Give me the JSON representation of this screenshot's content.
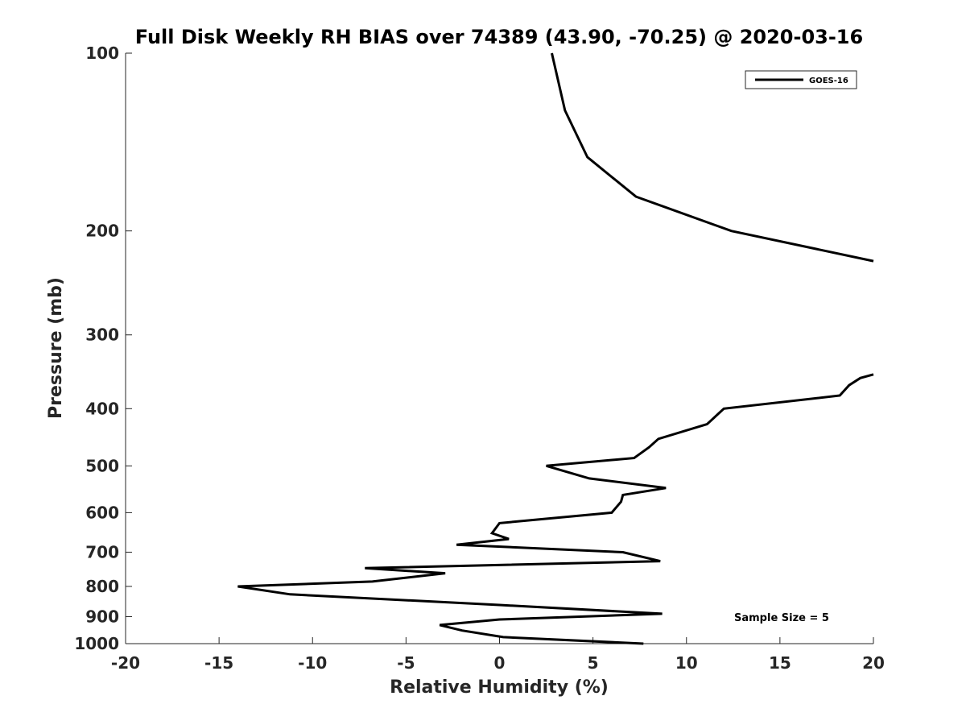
{
  "chart_data": {
    "type": "line",
    "title": "Full Disk Weekly RH BIAS over 74389 (43.90, -70.25) @ 2020-03-16",
    "xlabel": "Relative Humidity (%)",
    "ylabel": "Pressure (mb)",
    "xlim": [
      -20,
      20
    ],
    "ylim": [
      100,
      1000
    ],
    "y_scale": "log",
    "y_reversed": true,
    "grid": false,
    "x_ticks": [
      -20,
      -15,
      -10,
      -5,
      0,
      5,
      10,
      15,
      20
    ],
    "x_tick_labels": [
      "-20",
      "-15",
      "-10",
      "-5",
      "0",
      "5",
      "10",
      "15",
      "20"
    ],
    "y_ticks": [
      100,
      200,
      300,
      400,
      500,
      600,
      700,
      800,
      900,
      1000
    ],
    "y_tick_labels": [
      "100",
      "200",
      "300",
      "400",
      "500",
      "600",
      "700",
      "800",
      "900",
      "1000"
    ],
    "legend_position": "top-right",
    "annotation": "Sample Size = 5",
    "series": [
      {
        "name": "GOES-16",
        "color": "#000000",
        "segments": [
          {
            "x": [
              2.8,
              3.5,
              4.7,
              7.3,
              12.4,
              20.0
            ],
            "p": [
              100,
              125,
              150,
              175,
              200,
              225
            ]
          },
          {
            "x": [
              20.0,
              19.3,
              18.7,
              18.2,
              12.0,
              11.1,
              8.5,
              8.0,
              7.2,
              2.5,
              4.8,
              8.9,
              6.6,
              6.5,
              6.0,
              0.0,
              -0.4,
              0.5,
              -2.3,
              6.6,
              8.6,
              -7.2,
              -2.9,
              -6.8,
              -14.0,
              -11.2,
              0.0,
              8.7,
              0.0,
              -3.2,
              -2.0,
              0.2,
              7.7
            ],
            "p": [
              350,
              355,
              365,
              380,
              400,
              425,
              450,
              465,
              485,
              500,
              525,
              545,
              560,
              575,
              600,
              625,
              650,
              665,
              680,
              700,
              725,
              745,
              760,
              785,
              800,
              825,
              860,
              890,
              910,
              930,
              950,
              975,
              1000
            ]
          }
        ]
      }
    ]
  }
}
